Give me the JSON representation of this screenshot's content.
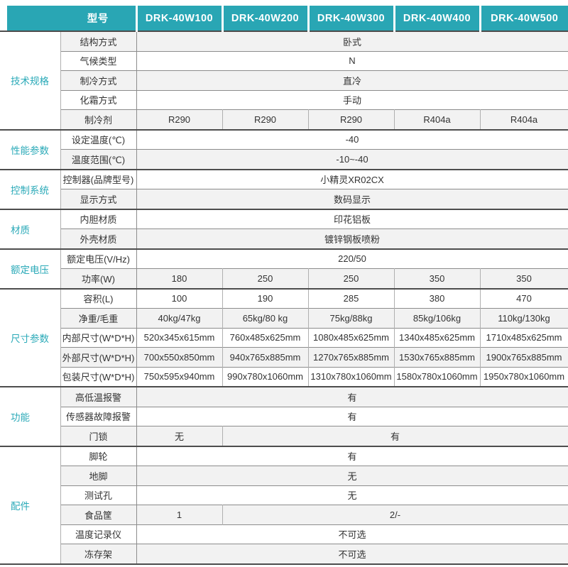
{
  "colors": {
    "accent_teal": "#29a6b4",
    "category_text": "#2baab8",
    "zebra_gray": "#f2f2f2",
    "row_line": "#8c8c8c",
    "group_line": "#4d4d4d"
  },
  "table": {
    "header": {
      "model_label": "型号",
      "models": [
        "DRK-40W100",
        "DRK-40W200",
        "DRK-40W300",
        "DRK-40W400",
        "DRK-40W500"
      ]
    },
    "groups": [
      {
        "category": "技术规格",
        "rows": [
          {
            "label": "结构方式",
            "cells": [
              {
                "text": "卧式",
                "span": 5
              }
            ]
          },
          {
            "label": "气候类型",
            "cells": [
              {
                "text": "N",
                "span": 5
              }
            ]
          },
          {
            "label": "制冷方式",
            "cells": [
              {
                "text": "直冷",
                "span": 5
              }
            ]
          },
          {
            "label": "化霜方式",
            "cells": [
              {
                "text": "手动",
                "span": 5
              }
            ]
          },
          {
            "label": "制冷剂",
            "cells": [
              {
                "text": "R290",
                "span": 1
              },
              {
                "text": "R290",
                "span": 1
              },
              {
                "text": "R290",
                "span": 1
              },
              {
                "text": "R404a",
                "span": 1
              },
              {
                "text": "R404a",
                "span": 1
              }
            ]
          }
        ]
      },
      {
        "category": "性能参数",
        "rows": [
          {
            "label": "设定温度(℃)",
            "cells": [
              {
                "text": "-40",
                "span": 5
              }
            ]
          },
          {
            "label": "温度范围(℃)",
            "cells": [
              {
                "text": "-10~-40",
                "span": 5
              }
            ]
          }
        ]
      },
      {
        "category": "控制系统",
        "rows": [
          {
            "label": "控制器(品牌型号)",
            "cells": [
              {
                "text": "小精灵XR02CX",
                "span": 5
              }
            ]
          },
          {
            "label": "显示方式",
            "cells": [
              {
                "text": "数码显示",
                "span": 5
              }
            ]
          }
        ]
      },
      {
        "category": "材质",
        "rows": [
          {
            "label": "内胆材质",
            "cells": [
              {
                "text": "印花铝板",
                "span": 5
              }
            ]
          },
          {
            "label": "外壳材质",
            "cells": [
              {
                "text": "镀锌钢板喷粉",
                "span": 5
              }
            ]
          }
        ]
      },
      {
        "category": "额定电压",
        "rows": [
          {
            "label": "额定电压(V/Hz)",
            "cells": [
              {
                "text": "220/50",
                "span": 5
              }
            ]
          },
          {
            "label": "功率(W)",
            "cells": [
              {
                "text": "180",
                "span": 1
              },
              {
                "text": "250",
                "span": 1
              },
              {
                "text": "250",
                "span": 1
              },
              {
                "text": "350",
                "span": 1
              },
              {
                "text": "350",
                "span": 1
              }
            ]
          }
        ]
      },
      {
        "category": "尺寸参数",
        "rows": [
          {
            "label": "容积(L)",
            "cells": [
              {
                "text": "100",
                "span": 1
              },
              {
                "text": "190",
                "span": 1
              },
              {
                "text": "285",
                "span": 1
              },
              {
                "text": "380",
                "span": 1
              },
              {
                "text": "470",
                "span": 1
              }
            ]
          },
          {
            "label": "净重/毛重",
            "cells": [
              {
                "text": "40kg/47kg",
                "span": 1
              },
              {
                "text": "65kg/80 kg",
                "span": 1
              },
              {
                "text": "75kg/88kg",
                "span": 1
              },
              {
                "text": "85kg/106kg",
                "span": 1
              },
              {
                "text": "110kg/130kg",
                "span": 1
              }
            ]
          },
          {
            "label": "内部尺寸(W*D*H)",
            "cells": [
              {
                "text": "520x345x615mm",
                "span": 1
              },
              {
                "text": "760x485x625mm",
                "span": 1
              },
              {
                "text": "1080x485x625mm",
                "span": 1
              },
              {
                "text": "1340x485x625mm",
                "span": 1
              },
              {
                "text": "1710x485x625mm",
                "span": 1
              }
            ]
          },
          {
            "label": "外部尺寸(W*D*H)",
            "cells": [
              {
                "text": "700x550x850mm",
                "span": 1
              },
              {
                "text": "940x765x885mm",
                "span": 1
              },
              {
                "text": "1270x765x885mm",
                "span": 1
              },
              {
                "text": "1530x765x885mm",
                "span": 1
              },
              {
                "text": "1900x765x885mm",
                "span": 1
              }
            ]
          },
          {
            "label": "包装尺寸(W*D*H)",
            "cells": [
              {
                "text": "750x595x940mm",
                "span": 1
              },
              {
                "text": "990x780x1060mm",
                "span": 1
              },
              {
                "text": "1310x780x1060mm",
                "span": 1
              },
              {
                "text": "1580x780x1060mm",
                "span": 1
              },
              {
                "text": "1950x780x1060mm",
                "span": 1
              }
            ]
          }
        ]
      },
      {
        "category": "功能",
        "rows": [
          {
            "label": "高低温报警",
            "cells": [
              {
                "text": "有",
                "span": 5
              }
            ]
          },
          {
            "label": "传感器故障报警",
            "cells": [
              {
                "text": "有",
                "span": 5
              }
            ]
          },
          {
            "label": "门锁",
            "cells": [
              {
                "text": "无",
                "span": 1
              },
              {
                "text": "有",
                "span": 4
              }
            ]
          }
        ]
      },
      {
        "category": "配件",
        "rows": [
          {
            "label": "脚轮",
            "cells": [
              {
                "text": "有",
                "span": 5
              }
            ]
          },
          {
            "label": "地脚",
            "cells": [
              {
                "text": "无",
                "span": 5
              }
            ]
          },
          {
            "label": "测试孔",
            "cells": [
              {
                "text": "无",
                "span": 5
              }
            ]
          },
          {
            "label": "食品筐",
            "cells": [
              {
                "text": "1",
                "span": 1
              },
              {
                "text": "2/-",
                "span": 4
              }
            ]
          },
          {
            "label": "温度记录仪",
            "cells": [
              {
                "text": "不可选",
                "span": 5
              }
            ]
          },
          {
            "label": "冻存架",
            "cells": [
              {
                "text": "不可选",
                "span": 5
              }
            ]
          }
        ]
      }
    ]
  }
}
